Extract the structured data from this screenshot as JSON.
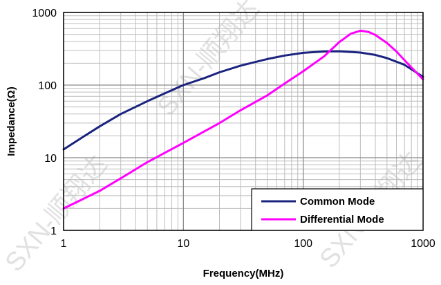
{
  "chart_data": {
    "type": "line",
    "title": "",
    "xlabel": "Frequency(MHz)",
    "ylabel": "Impedance(Ω)",
    "xscale": "log",
    "yscale": "log",
    "xlim": [
      1,
      1000
    ],
    "ylim": [
      1,
      1000
    ],
    "xticks": [
      "1",
      "10",
      "100",
      "1000"
    ],
    "yticks": [
      "1",
      "10",
      "100",
      "1000"
    ],
    "grid": true,
    "legend_position": "bottom-right",
    "series": [
      {
        "name": "Common Mode",
        "color": "#1a237e",
        "points": [
          [
            1,
            13
          ],
          [
            1.5,
            20
          ],
          [
            2,
            27
          ],
          [
            3,
            40
          ],
          [
            5,
            60
          ],
          [
            7,
            77
          ],
          [
            10,
            100
          ],
          [
            15,
            125
          ],
          [
            20,
            150
          ],
          [
            30,
            185
          ],
          [
            50,
            228
          ],
          [
            70,
            255
          ],
          [
            100,
            278
          ],
          [
            150,
            290
          ],
          [
            200,
            292
          ],
          [
            300,
            280
          ],
          [
            400,
            260
          ],
          [
            500,
            235
          ],
          [
            700,
            190
          ],
          [
            1000,
            130
          ]
        ]
      },
      {
        "name": "Differential Mode",
        "color": "#ff00ff",
        "points": [
          [
            1,
            2
          ],
          [
            2,
            3.5
          ],
          [
            3,
            5.2
          ],
          [
            5,
            8.7
          ],
          [
            10,
            16
          ],
          [
            20,
            30
          ],
          [
            30,
            45
          ],
          [
            50,
            72
          ],
          [
            70,
            105
          ],
          [
            100,
            155
          ],
          [
            150,
            250
          ],
          [
            200,
            390
          ],
          [
            250,
            510
          ],
          [
            300,
            560
          ],
          [
            350,
            540
          ],
          [
            400,
            490
          ],
          [
            500,
            380
          ],
          [
            600,
            290
          ],
          [
            700,
            220
          ],
          [
            800,
            175
          ],
          [
            1000,
            120
          ]
        ]
      }
    ]
  },
  "watermark": {
    "text": "SXN-顺翔达"
  }
}
